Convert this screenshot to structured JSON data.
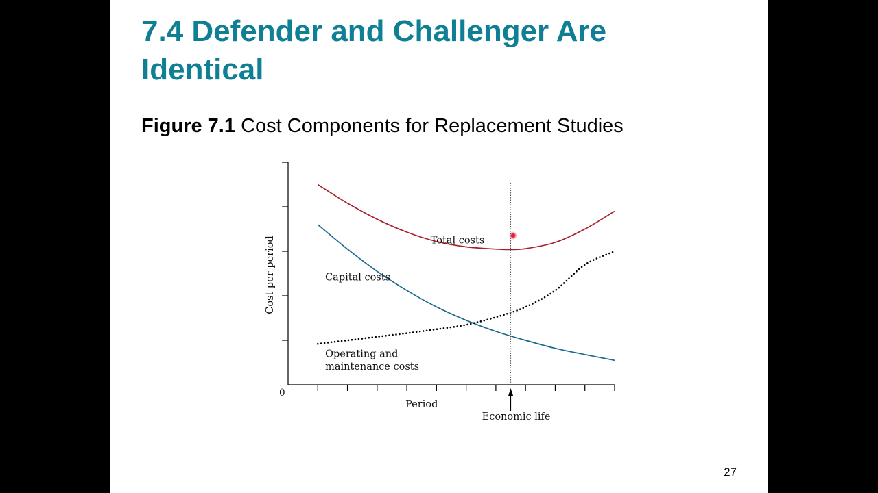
{
  "slide": {
    "title": "7.4 Defender and Challenger Are Identical",
    "figure_label": "Figure 7.1",
    "figure_caption": "Cost Components for Replacement Studies",
    "page_number": "27"
  },
  "colors": {
    "title": "#0e7f94",
    "total_costs": "#a8202c",
    "capital_costs": "#1a6a8e",
    "om_costs": "#000000"
  },
  "chart_data": {
    "type": "line",
    "title": "",
    "xlabel": "Period",
    "ylabel": "Cost per period",
    "origin_label": "0",
    "xlim": [
      0,
      11
    ],
    "ylim": [
      0,
      5
    ],
    "x_ticks": [
      1,
      2,
      3,
      4,
      5,
      6,
      7,
      8,
      9,
      10,
      11
    ],
    "y_ticks": [
      1,
      2,
      3,
      4,
      5
    ],
    "tick_labels": false,
    "grid": false,
    "legend": "none",
    "series": [
      {
        "name": "Total costs",
        "style": "solid",
        "x": [
          1,
          2,
          3,
          4,
          5,
          6,
          7,
          7.5,
          8,
          9,
          10,
          11
        ],
        "y": [
          4.5,
          4.08,
          3.72,
          3.43,
          3.22,
          3.1,
          3.05,
          3.04,
          3.06,
          3.2,
          3.5,
          3.9
        ]
      },
      {
        "name": "Capital costs",
        "style": "solid",
        "x": [
          1,
          2,
          3,
          4,
          5,
          6,
          7,
          8,
          9,
          10,
          11
        ],
        "y": [
          3.6,
          3.05,
          2.55,
          2.12,
          1.75,
          1.45,
          1.2,
          1.0,
          0.82,
          0.68,
          0.55
        ]
      },
      {
        "name": "Operating and maintenance costs",
        "style": "dotted",
        "x": [
          1,
          2,
          3,
          4,
          5,
          6,
          7,
          8,
          9,
          10,
          11
        ],
        "y": [
          0.92,
          1.0,
          1.08,
          1.16,
          1.25,
          1.35,
          1.52,
          1.75,
          2.12,
          2.7,
          3.0
        ]
      }
    ],
    "annotations": [
      {
        "text": "Total costs",
        "x": 4.8,
        "y": 3.18
      },
      {
        "text": "Capital costs",
        "x": 1.25,
        "y": 2.35
      },
      {
        "text": "Operating and",
        "x": 1.25,
        "y": 0.62
      },
      {
        "text": "maintenance costs",
        "x": 1.25,
        "y": 0.34
      }
    ],
    "marker": {
      "label": "Economic life",
      "x": 7.5
    }
  }
}
